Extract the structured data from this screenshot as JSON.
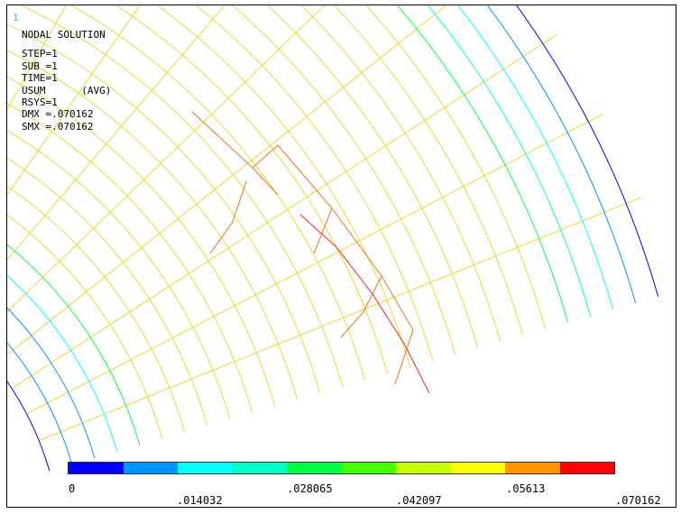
{
  "window_number": "1",
  "info": {
    "title": "NODAL SOLUTION",
    "step": "STEP=1",
    "sub": "SUB =1",
    "time": "TIME=1",
    "usum": "USUM      (AVG)",
    "rsys": "RSYS=1",
    "dmx": "DMX =.070162",
    "smx": "SMX =.070162"
  },
  "legend": {
    "colors": [
      "#0000ff",
      "#0096ff",
      "#00ffff",
      "#00ffc8",
      "#00ff46",
      "#46ff00",
      "#c8ff00",
      "#ffff00",
      "#ff9600",
      "#ff0000"
    ],
    "labels": [
      "0",
      ".014032",
      ".028065",
      ".042097",
      ".05613",
      ".070162"
    ]
  },
  "colors": {
    "grid": "#e8d830",
    "highlight_orange": "#f07020",
    "highlight_red": "#ff2020"
  }
}
